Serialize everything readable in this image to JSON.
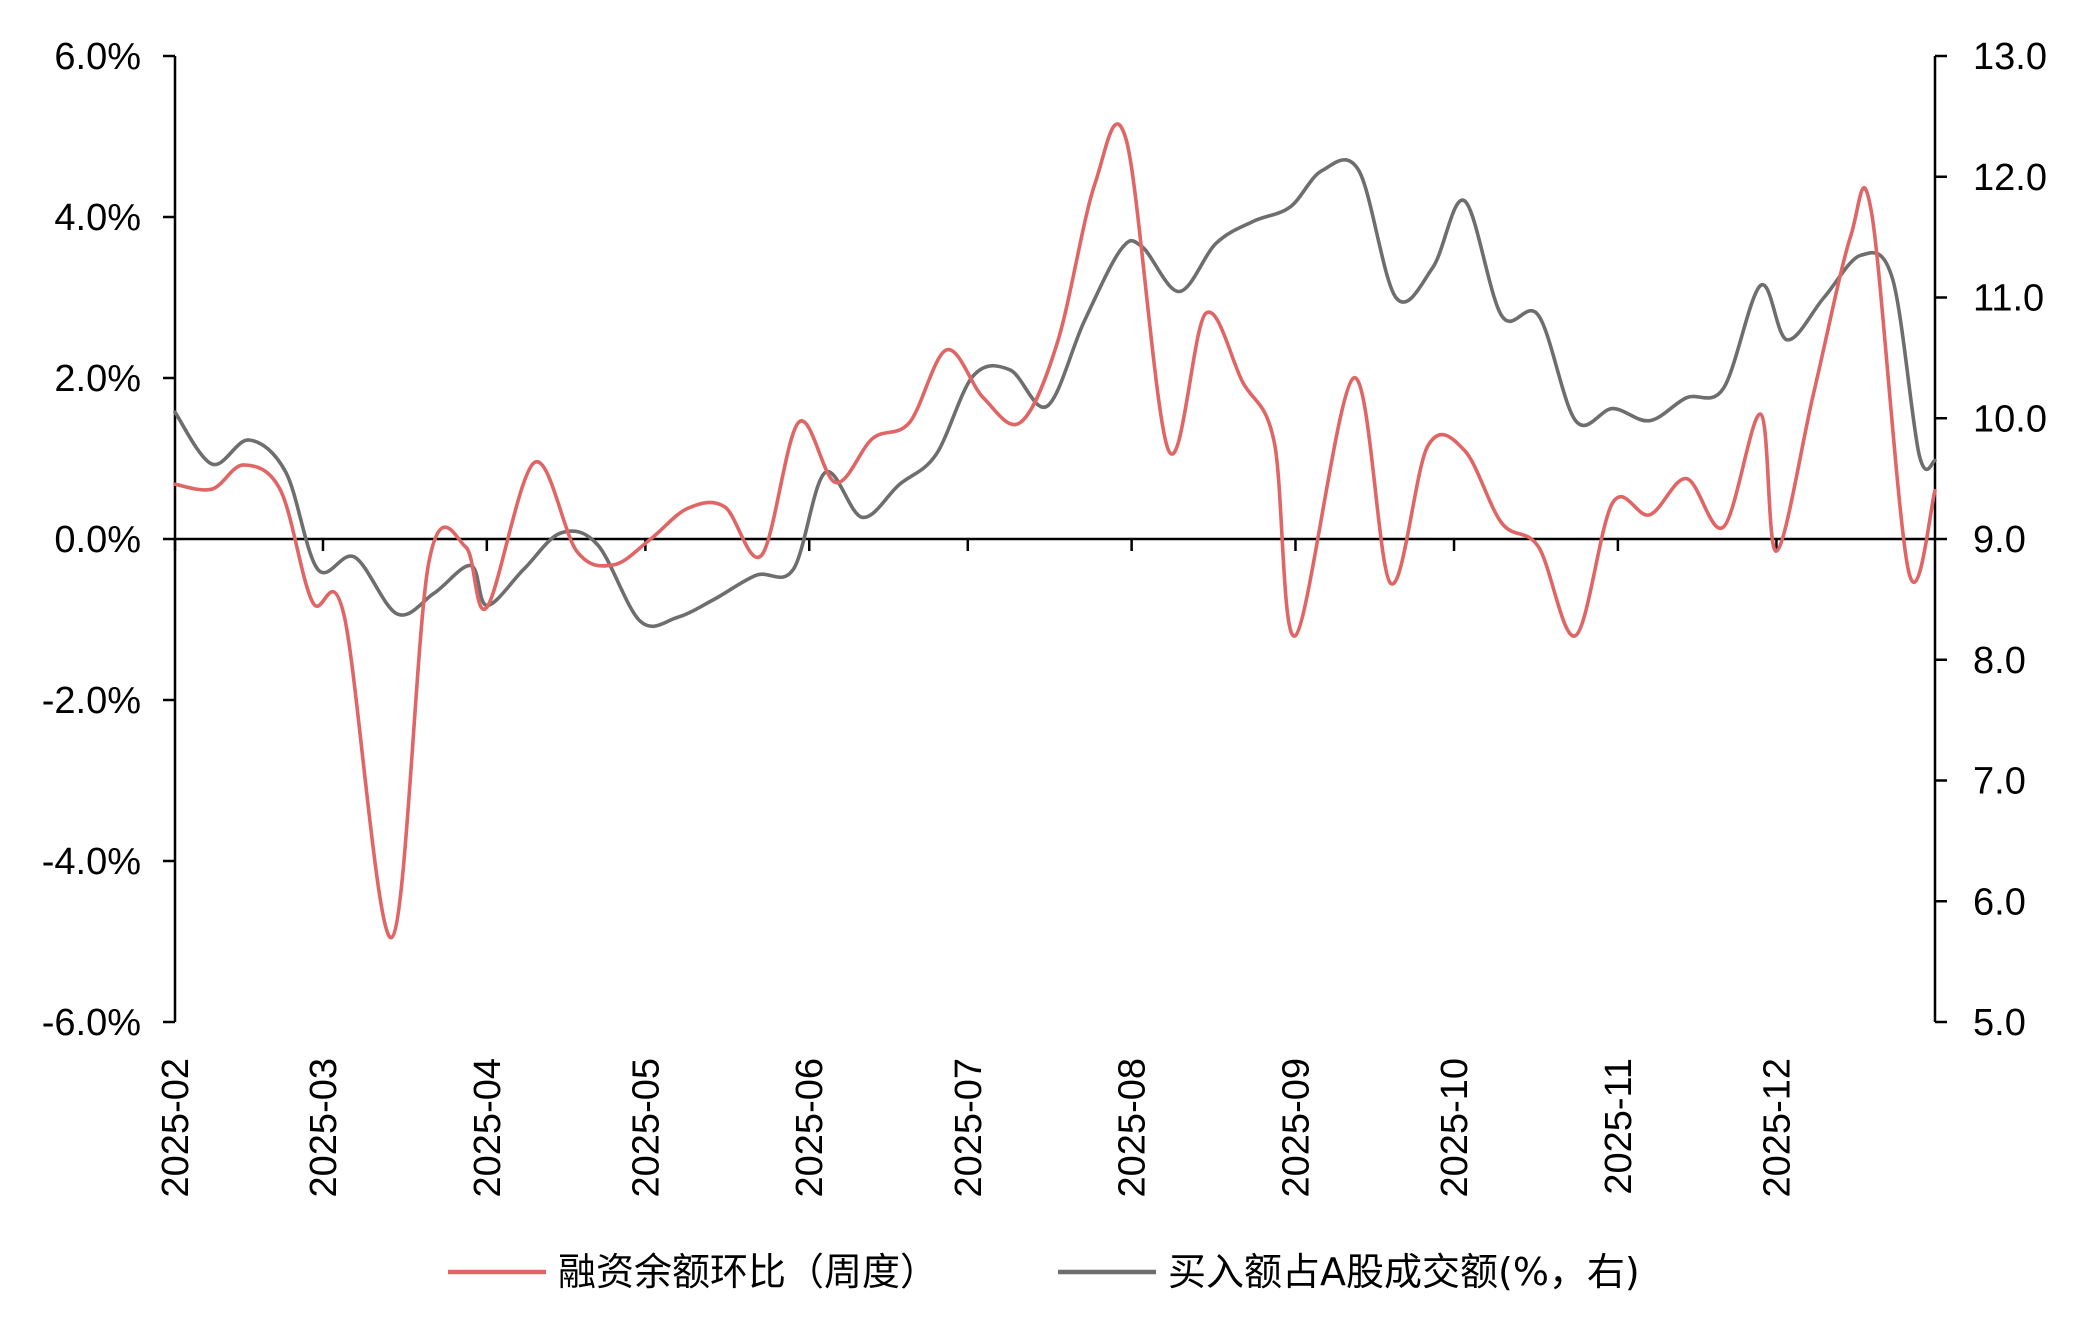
{
  "chart_data": {
    "type": "line",
    "title": "",
    "x_tick_labels": [
      "2025-02",
      "2025-03",
      "2025-04",
      "2025-05",
      "2025-06",
      "2025-07",
      "2025-08",
      "2025-09",
      "2025-10",
      "2025-11",
      "2025-12"
    ],
    "x_range": [
      "2025-02-01",
      "2025-12-31"
    ],
    "y_left": {
      "range": [
        -6.0,
        6.0
      ],
      "ticks": [
        -6.0,
        -4.0,
        -2.0,
        0.0,
        2.0,
        4.0,
        6.0
      ],
      "tick_labels": [
        "-6.0%",
        "-4.0%",
        "-2.0%",
        "0.0%",
        "2.0%",
        "4.0%",
        "6.0%"
      ],
      "unit": "%"
    },
    "y_right": {
      "range": [
        5.0,
        13.0
      ],
      "ticks": [
        5.0,
        6.0,
        7.0,
        8.0,
        9.0,
        10.0,
        11.0,
        12.0,
        13.0
      ],
      "tick_labels": [
        "5.0",
        "6.0",
        "7.0",
        "8.0",
        "9.0",
        "10.0",
        "11.0",
        "12.0",
        "13.0"
      ]
    },
    "grid": false,
    "zero_line": true,
    "legend_position": "bottom",
    "series": [
      {
        "name": "融资余额环比（周度）",
        "axis": "left",
        "color": "#e06666",
        "points": [
          [
            "2025-02-01",
            0.68
          ],
          [
            "2025-02-08",
            0.62
          ],
          [
            "2025-02-14",
            0.92
          ],
          [
            "2025-02-21",
            0.6
          ],
          [
            "2025-02-27",
            -0.78
          ],
          [
            "2025-03-05",
            -0.95
          ],
          [
            "2025-03-14",
            -4.95
          ],
          [
            "2025-03-21",
            -0.3
          ],
          [
            "2025-03-28",
            -0.1
          ],
          [
            "2025-04-01",
            -0.85
          ],
          [
            "2025-04-10",
            0.95
          ],
          [
            "2025-04-18",
            -0.15
          ],
          [
            "2025-04-25",
            -0.32
          ],
          [
            "2025-05-02",
            0.0
          ],
          [
            "2025-05-09",
            0.38
          ],
          [
            "2025-05-16",
            0.4
          ],
          [
            "2025-05-23",
            -0.2
          ],
          [
            "2025-05-30",
            1.45
          ],
          [
            "2025-06-06",
            0.7
          ],
          [
            "2025-06-13",
            1.25
          ],
          [
            "2025-06-20",
            1.45
          ],
          [
            "2025-06-27",
            2.35
          ],
          [
            "2025-07-04",
            1.75
          ],
          [
            "2025-07-11",
            1.45
          ],
          [
            "2025-07-18",
            2.45
          ],
          [
            "2025-07-25",
            4.4
          ],
          [
            "2025-07-31",
            4.95
          ],
          [
            "2025-08-08",
            1.1
          ],
          [
            "2025-08-15",
            2.8
          ],
          [
            "2025-08-22",
            1.95
          ],
          [
            "2025-08-28",
            1.2
          ],
          [
            "2025-09-01",
            -1.2
          ],
          [
            "2025-09-12",
            2.0
          ],
          [
            "2025-09-19",
            -0.55
          ],
          [
            "2025-09-26",
            1.15
          ],
          [
            "2025-10-03",
            1.1
          ],
          [
            "2025-10-10",
            0.2
          ],
          [
            "2025-10-17",
            -0.1
          ],
          [
            "2025-10-24",
            -1.2
          ],
          [
            "2025-10-31",
            0.45
          ],
          [
            "2025-11-07",
            0.3
          ],
          [
            "2025-11-14",
            0.75
          ],
          [
            "2025-11-21",
            0.15
          ],
          [
            "2025-11-28",
            1.55
          ],
          [
            "2025-12-01",
            -0.15
          ],
          [
            "2025-12-08",
            1.8
          ],
          [
            "2025-12-15",
            3.75
          ],
          [
            "2025-12-19",
            4.05
          ],
          [
            "2025-12-26",
            -0.4
          ],
          [
            "2025-12-31",
            0.6
          ]
        ]
      },
      {
        "name": "买入额占A股成交额(%，右)",
        "axis": "right",
        "color": "#6e6e6e",
        "points": [
          [
            "2025-02-01",
            10.05
          ],
          [
            "2025-02-08",
            9.62
          ],
          [
            "2025-02-15",
            9.82
          ],
          [
            "2025-02-22",
            9.55
          ],
          [
            "2025-02-28",
            8.75
          ],
          [
            "2025-03-07",
            8.85
          ],
          [
            "2025-03-15",
            8.38
          ],
          [
            "2025-03-22",
            8.55
          ],
          [
            "2025-03-29",
            8.78
          ],
          [
            "2025-04-01",
            8.45
          ],
          [
            "2025-04-08",
            8.75
          ],
          [
            "2025-04-15",
            9.05
          ],
          [
            "2025-04-22",
            8.95
          ],
          [
            "2025-04-30",
            8.32
          ],
          [
            "2025-05-07",
            8.35
          ],
          [
            "2025-05-14",
            8.5
          ],
          [
            "2025-05-22",
            8.7
          ],
          [
            "2025-05-29",
            8.75
          ],
          [
            "2025-06-04",
            9.55
          ],
          [
            "2025-06-11",
            9.18
          ],
          [
            "2025-06-18",
            9.45
          ],
          [
            "2025-06-25",
            9.7
          ],
          [
            "2025-07-02",
            10.35
          ],
          [
            "2025-07-09",
            10.4
          ],
          [
            "2025-07-16",
            10.1
          ],
          [
            "2025-07-23",
            10.8
          ],
          [
            "2025-07-30",
            11.4
          ],
          [
            "2025-08-03",
            11.42
          ],
          [
            "2025-08-10",
            11.05
          ],
          [
            "2025-08-17",
            11.45
          ],
          [
            "2025-08-24",
            11.63
          ],
          [
            "2025-08-31",
            11.75
          ],
          [
            "2025-09-06",
            12.05
          ],
          [
            "2025-09-13",
            12.05
          ],
          [
            "2025-09-20",
            11.0
          ],
          [
            "2025-09-27",
            11.25
          ],
          [
            "2025-10-03",
            11.8
          ],
          [
            "2025-10-10",
            10.85
          ],
          [
            "2025-10-17",
            10.85
          ],
          [
            "2025-10-24",
            9.98
          ],
          [
            "2025-10-31",
            10.08
          ],
          [
            "2025-11-07",
            9.98
          ],
          [
            "2025-11-14",
            10.17
          ],
          [
            "2025-11-21",
            10.25
          ],
          [
            "2025-11-28",
            11.1
          ],
          [
            "2025-12-03",
            10.65
          ],
          [
            "2025-12-10",
            11.0
          ],
          [
            "2025-12-17",
            11.35
          ],
          [
            "2025-12-23",
            11.15
          ],
          [
            "2025-12-28",
            9.7
          ],
          [
            "2025-12-31",
            9.65
          ]
        ]
      }
    ]
  }
}
